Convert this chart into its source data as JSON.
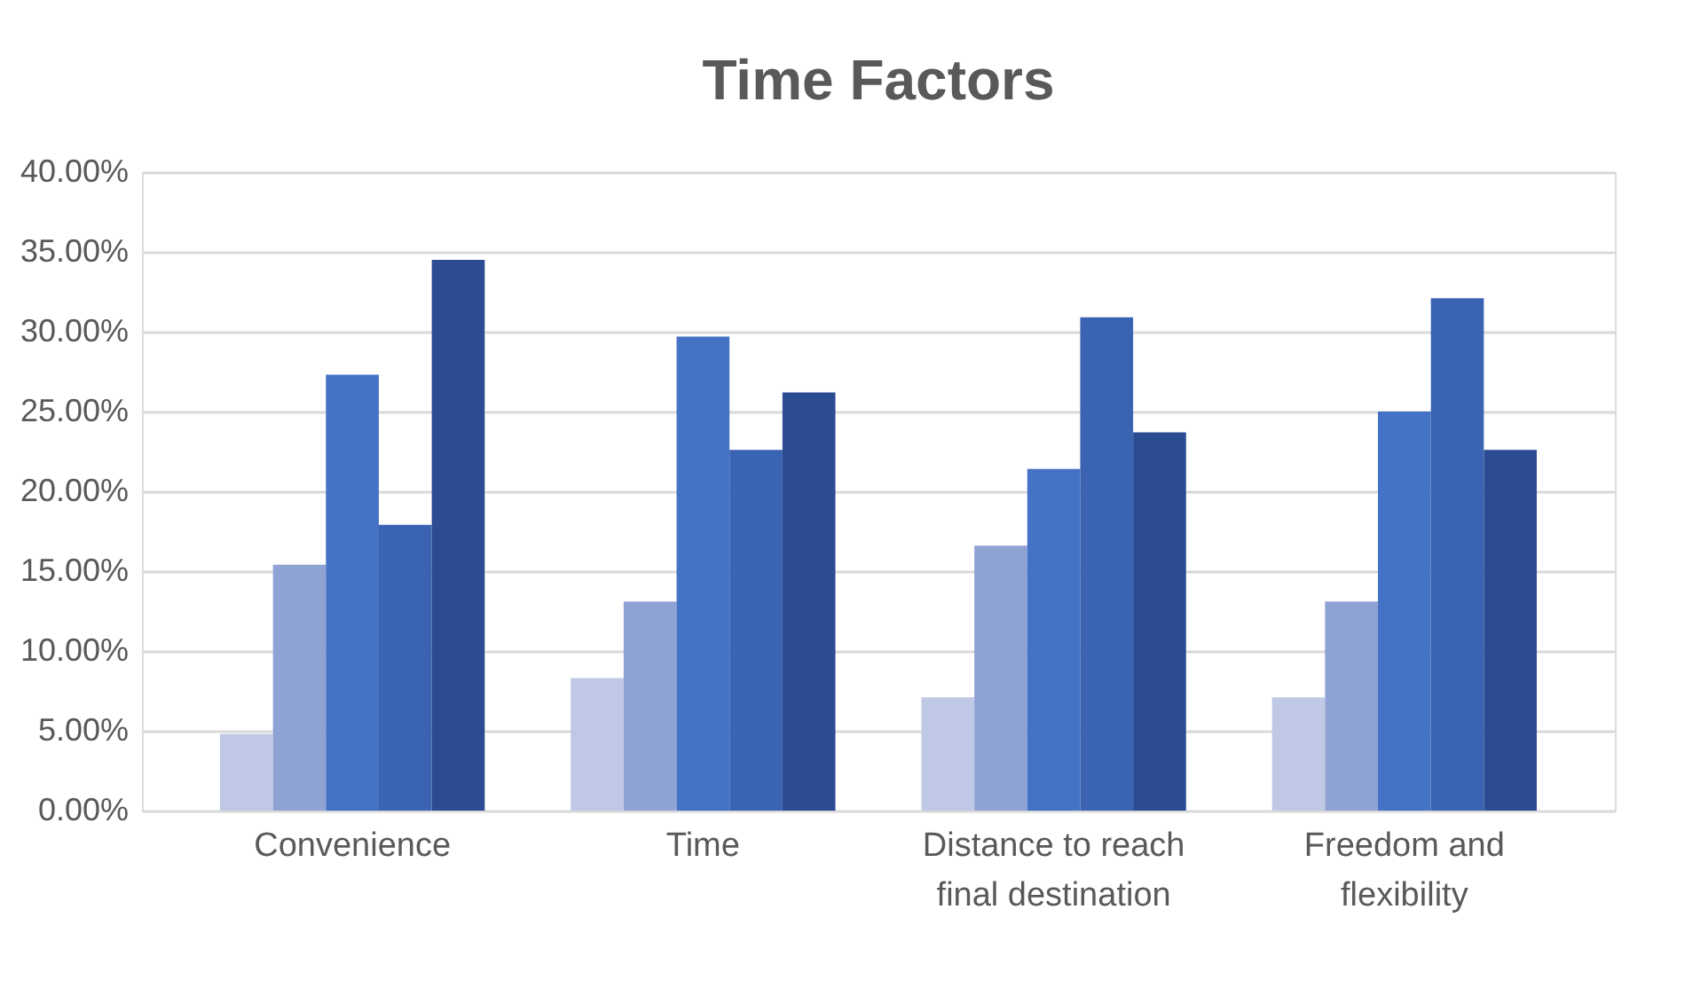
{
  "chart_data": {
    "type": "bar",
    "title": "Time Factors",
    "categories": [
      "Convenience",
      "Time",
      "Distance to reach final destination",
      "Freedom and flexibility"
    ],
    "series": [
      {
        "color": "#bfc9e6",
        "values": [
          4.8,
          8.3,
          7.1,
          7.1
        ]
      },
      {
        "color": "#8fa2d4",
        "values": [
          15.4,
          13.1,
          16.6,
          13.1
        ]
      },
      {
        "color": "#4472c4",
        "values": [
          27.3,
          29.7,
          21.4,
          25.0
        ]
      },
      {
        "color": "#3a63b2",
        "values": [
          17.9,
          22.6,
          30.9,
          32.1
        ]
      },
      {
        "color": "#2b4b92",
        "values": [
          34.5,
          26.2,
          23.7,
          22.6
        ]
      }
    ],
    "ylim": [
      0,
      40
    ],
    "yticks": [
      {
        "value": 0,
        "label": "0.00%"
      },
      {
        "value": 5,
        "label": "5.00%"
      },
      {
        "value": 10,
        "label": "10.00%"
      },
      {
        "value": 15,
        "label": "15.00%"
      },
      {
        "value": 20,
        "label": "20.00%"
      },
      {
        "value": 25,
        "label": "25.00%"
      },
      {
        "value": 30,
        "label": "30.00%"
      },
      {
        "value": 35,
        "label": "35.00%"
      },
      {
        "value": 40,
        "label": "40.00%"
      }
    ],
    "grid": "y",
    "legend": false
  }
}
